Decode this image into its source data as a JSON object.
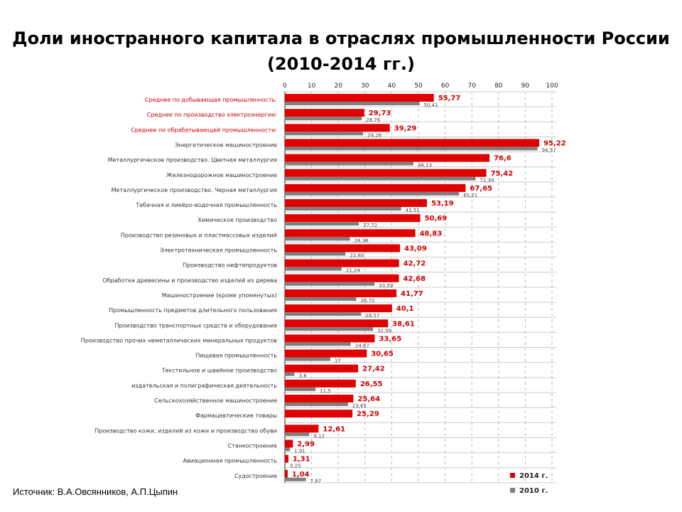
{
  "title": "Доли иностранного капитала в отраслях промышленности России (2010-2014 гг.)",
  "source": "Источник: В.А.Овсянников, А.П.Цыпин",
  "chart_data": {
    "type": "bar",
    "orientation": "horizontal",
    "title": "Доли иностранного капитала в отраслях промышленности России (2010-2014 гг.)",
    "xlim": [
      0,
      100
    ],
    "xticks": [
      0,
      10,
      20,
      30,
      40,
      50,
      60,
      70,
      80,
      90,
      100
    ],
    "grid": true,
    "legend_position": "bottom-right",
    "colors": {
      "2014": "#e00000",
      "2010": "#7f7f7f",
      "highlight_label": "#cc0000",
      "label": "#333333"
    },
    "categories": [
      "Среднее по добывающая промышленность:",
      "Среднее по производство электроэнергии:",
      "Среднее по обрабатывающей промышленности:",
      "Энергетическое машиностроение",
      "Металлургическое производство. Цветная металлургия",
      "Железнодорожное машиностроение",
      "Металлургическое производство. Черная металлургия",
      "Табачная и ликёро-водочная промышленность",
      "Химическое производство",
      "Производство резиновых и пластмассовых изделий",
      "Электротехническая промышленность",
      "Производство нефтепродуктов",
      "Обработка древесины и производство изделий из дерева",
      "Машиностроение (кроме упомянутых)",
      "Промышленность предметов длительного пользования",
      "Производство транспортных средств и оборудования",
      "Производство прочих неметаллических минеральных продуктов",
      "Пищевая промышленность",
      "Текстильное и швейное производство",
      "издательская и полиграфическая деятельность",
      "Сельскохозяйственное машиностроение",
      "Фармацевтические товары",
      "Производство кожи, изделий из кожи и производство обуви",
      "Станкостроение",
      "Авиационная промышленность",
      "Судостроение"
    ],
    "highlighted_categories": [
      0,
      1,
      2
    ],
    "series": [
      {
        "name": "2014 г.",
        "values": [
          55.77,
          29.73,
          39.29,
          95.22,
          76.6,
          75.42,
          67.65,
          53.19,
          50.69,
          48.83,
          43.09,
          42.72,
          42.68,
          41.77,
          40.1,
          38.61,
          33.65,
          30.65,
          27.42,
          26.55,
          25.64,
          25.29,
          12.61,
          2.99,
          1.31,
          1.04
        ],
        "labels": [
          "55,77",
          "29,73",
          "39,29",
          "95,22",
          "76,6",
          "75,42",
          "67,65",
          "53,19",
          "50,69",
          "48,83",
          "43,09",
          "42,72",
          "42,68",
          "41,77",
          "40,1",
          "38,61",
          "33,65",
          "30,65",
          "27,42",
          "26,55",
          "25,64",
          "25,29",
          "12,61",
          "2,99",
          "1,31",
          "1,04"
        ]
      },
      {
        "name": "2010 г.",
        "values": [
          50.41,
          28.76,
          29.26,
          94.57,
          48.13,
          71.39,
          65.21,
          43.51,
          27.72,
          24.36,
          22.69,
          21.24,
          33.59,
          26.72,
          28.57,
          32.99,
          24.67,
          17,
          3.6,
          11.5,
          23.65,
          null,
          9.12,
          1.91,
          0.25,
          7.87
        ],
        "labels": [
          "50,41",
          "28,76",
          "29,26",
          "94,57",
          "48,13",
          "71,39",
          "65,21",
          "43,51",
          "27,72",
          "24,36",
          "22,69",
          "21,24",
          "33,59",
          "26,72",
          "28,57",
          "32,99",
          "24,67",
          "17",
          "3,6",
          "11,5",
          "23,65",
          "",
          "9,12",
          "1,91",
          "0,25",
          "7,87"
        ]
      }
    ]
  }
}
